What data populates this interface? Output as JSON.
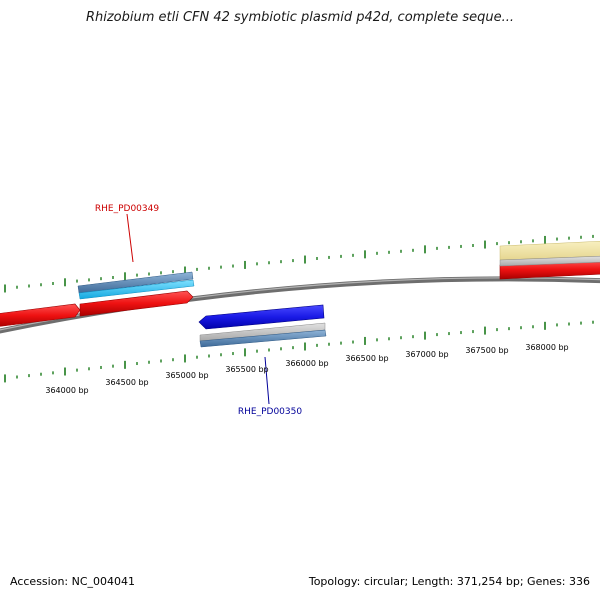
{
  "title": "Rhizobium etli CFN 42 symbiotic plasmid p42d, complete seque...",
  "footer": {
    "accession": "Accession: NC_004041",
    "summary": "Topology: circular; Length: 371,254 bp; Genes: 336"
  },
  "scale": {
    "ticks": [
      "364000 bp",
      "364500 bp",
      "365000 bp",
      "365500 bp",
      "366000 bp",
      "366500 bp",
      "367000 bp",
      "367500 bp",
      "368000 bp"
    ]
  },
  "genes": [
    {
      "label": "RHE_PD00349",
      "color": "#cc0000"
    },
    {
      "label": "RHE_PD00350",
      "color": "#000099"
    }
  ],
  "colors": {
    "forward_cds": "#ee1111",
    "reverse_cds": "#1a1ae6",
    "gene_upper": "#1fb8ee",
    "gene_lower": "#4a78a8",
    "tick": "#1a7a1a",
    "backbone": "#888888",
    "misc_feature": "#f2e6a6"
  }
}
